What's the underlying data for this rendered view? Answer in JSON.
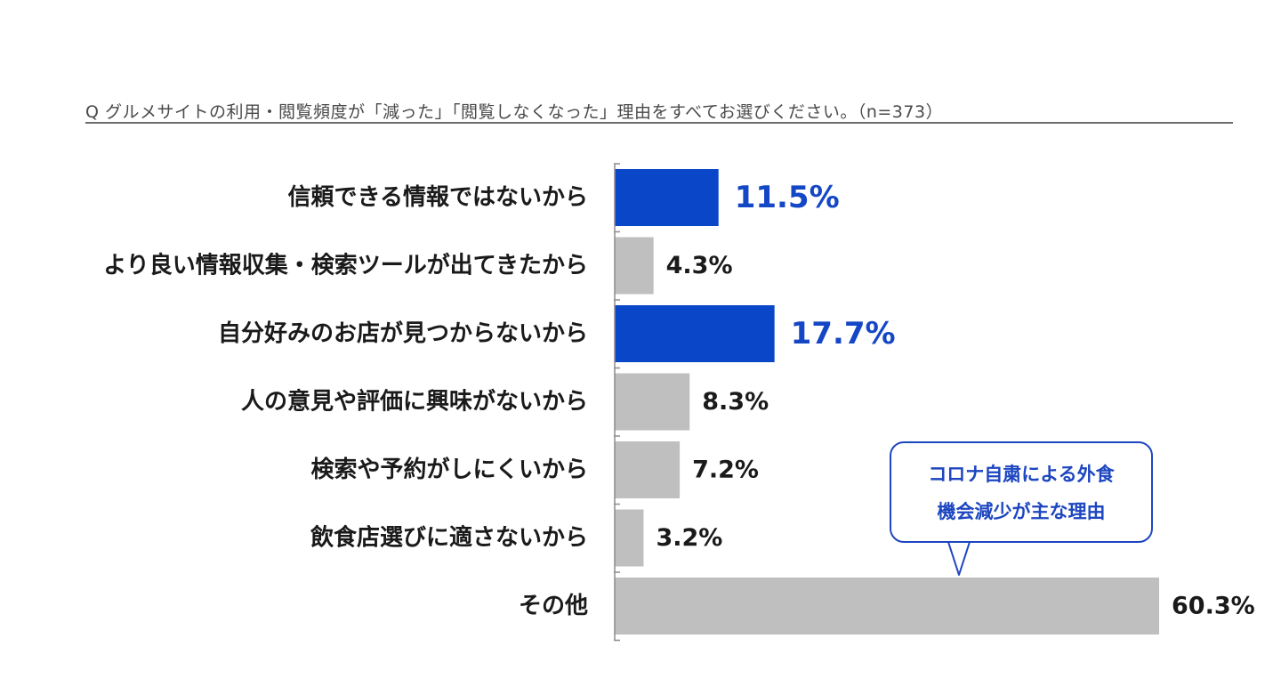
{
  "question": "Q グルメサイトの利用・閲覧頻度が「減った」「閲覧しなくなった」理由をすべてお選びください。（n=373）",
  "callout": {
    "line1": "コロナ自粛による外食",
    "line2": "機会減少が主な理由"
  },
  "colors": {
    "highlight": "#0a46c8",
    "default_bar": "#bfbfbf",
    "highlight_text": "#1447c6",
    "text": "#1a1a1a"
  },
  "chart_data": {
    "type": "bar",
    "orientation": "horizontal",
    "title": "Q グルメサイトの利用・閲覧頻度が「減った」「閲覧しなくなった」理由をすべてお選びください。（n=373）",
    "xlabel": "",
    "ylabel": "",
    "xlim": [
      0,
      60.3
    ],
    "grid": false,
    "unit": "%",
    "categories": [
      "信頼できる情報ではないから",
      "より良い情報収集・検索ツールが出てきたから",
      "自分好みのお店が見つからないから",
      "人の意見や評価に興味がないから",
      "検索や予約がしにくいから",
      "飲食店選びに適さないから",
      "その他"
    ],
    "values": [
      11.5,
      4.3,
      17.7,
      8.3,
      7.2,
      3.2,
      60.3
    ],
    "value_labels": [
      "11.5%",
      "4.3%",
      "17.7%",
      "8.3%",
      "7.2%",
      "3.2%",
      "60.3%"
    ],
    "highlighted": [
      true,
      false,
      true,
      false,
      false,
      false,
      false
    ]
  }
}
